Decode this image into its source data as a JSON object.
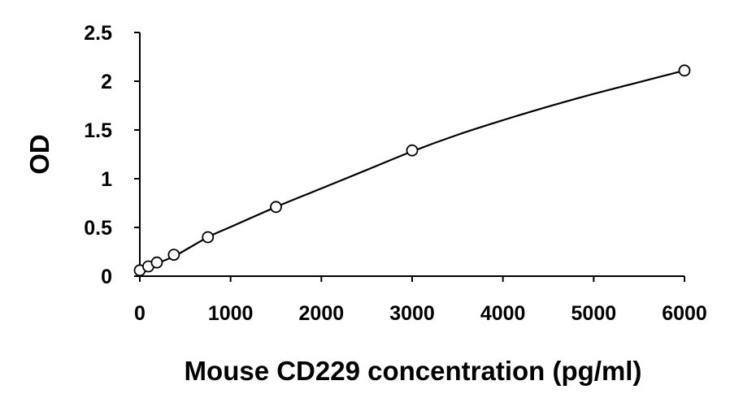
{
  "chart_data": {
    "type": "scatter",
    "title": "",
    "xlabel": "Mouse CD229 concentration (pg/ml)",
    "ylabel": "OD",
    "xlim": [
      0,
      6000
    ],
    "ylim": [
      0,
      2.5
    ],
    "x_ticks": [
      "0",
      "1000",
      "2000",
      "3000",
      "4000",
      "5000",
      "6000"
    ],
    "y_ticks": [
      "0",
      "0.5",
      "1",
      "1.5",
      "2",
      "2.5"
    ],
    "x_tick_values": [
      0,
      1000,
      2000,
      3000,
      4000,
      5000,
      6000
    ],
    "y_tick_values": [
      0,
      0.5,
      1,
      1.5,
      2,
      2.5
    ],
    "grid": false,
    "legend": "none",
    "marker": "open-circle",
    "trendline": "smooth fitted curve",
    "colors": {
      "line": "#000000",
      "marker_stroke": "#000000",
      "marker_fill": "#ffffff"
    },
    "series": [
      {
        "points": [
          {
            "x": 0,
            "y": 0.06
          },
          {
            "x": 93.75,
            "y": 0.1
          },
          {
            "x": 187.5,
            "y": 0.14
          },
          {
            "x": 375,
            "y": 0.22
          },
          {
            "x": 750,
            "y": 0.4
          },
          {
            "x": 1500,
            "y": 0.71
          },
          {
            "x": 3000,
            "y": 1.29
          },
          {
            "x": 6000,
            "y": 2.11
          }
        ]
      }
    ],
    "curve_x": [
      0,
      100,
      200,
      400,
      750,
      1000,
      1500,
      2000,
      2500,
      3000,
      3500,
      4000,
      4500,
      5000,
      5500,
      6000
    ],
    "curve_y": [
      0.06,
      0.095,
      0.135,
      0.215,
      0.4,
      0.505,
      0.71,
      0.9,
      1.09,
      1.28,
      1.45,
      1.6,
      1.74,
      1.87,
      1.99,
      2.11
    ]
  }
}
